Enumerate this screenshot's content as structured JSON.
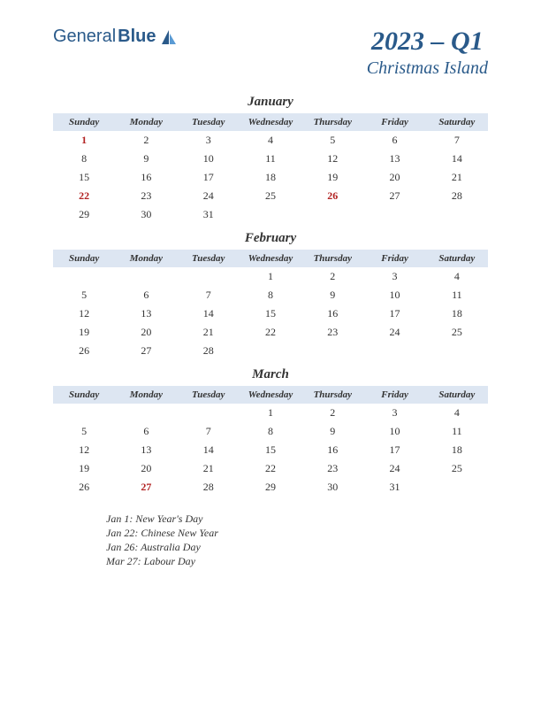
{
  "logo": {
    "general": "General",
    "blue": "Blue"
  },
  "title": {
    "quarter": "2023 – Q1",
    "region": "Christmas Island"
  },
  "dayHeaders": [
    "Sunday",
    "Monday",
    "Tuesday",
    "Wednesday",
    "Thursday",
    "Friday",
    "Saturday"
  ],
  "months": [
    {
      "name": "January",
      "weeks": [
        [
          {
            "d": "1",
            "h": true
          },
          {
            "d": "2"
          },
          {
            "d": "3"
          },
          {
            "d": "4"
          },
          {
            "d": "5"
          },
          {
            "d": "6"
          },
          {
            "d": "7"
          }
        ],
        [
          {
            "d": "8"
          },
          {
            "d": "9"
          },
          {
            "d": "10"
          },
          {
            "d": "11"
          },
          {
            "d": "12"
          },
          {
            "d": "13"
          },
          {
            "d": "14"
          }
        ],
        [
          {
            "d": "15"
          },
          {
            "d": "16"
          },
          {
            "d": "17"
          },
          {
            "d": "18"
          },
          {
            "d": "19"
          },
          {
            "d": "20"
          },
          {
            "d": "21"
          }
        ],
        [
          {
            "d": "22",
            "h": true
          },
          {
            "d": "23"
          },
          {
            "d": "24"
          },
          {
            "d": "25"
          },
          {
            "d": "26",
            "h": true
          },
          {
            "d": "27"
          },
          {
            "d": "28"
          }
        ],
        [
          {
            "d": "29"
          },
          {
            "d": "30"
          },
          {
            "d": "31"
          },
          {
            "d": ""
          },
          {
            "d": ""
          },
          {
            "d": ""
          },
          {
            "d": ""
          }
        ]
      ]
    },
    {
      "name": "February",
      "weeks": [
        [
          {
            "d": ""
          },
          {
            "d": ""
          },
          {
            "d": ""
          },
          {
            "d": "1"
          },
          {
            "d": "2"
          },
          {
            "d": "3"
          },
          {
            "d": "4"
          }
        ],
        [
          {
            "d": "5"
          },
          {
            "d": "6"
          },
          {
            "d": "7"
          },
          {
            "d": "8"
          },
          {
            "d": "9"
          },
          {
            "d": "10"
          },
          {
            "d": "11"
          }
        ],
        [
          {
            "d": "12"
          },
          {
            "d": "13"
          },
          {
            "d": "14"
          },
          {
            "d": "15"
          },
          {
            "d": "16"
          },
          {
            "d": "17"
          },
          {
            "d": "18"
          }
        ],
        [
          {
            "d": "19"
          },
          {
            "d": "20"
          },
          {
            "d": "21"
          },
          {
            "d": "22"
          },
          {
            "d": "23"
          },
          {
            "d": "24"
          },
          {
            "d": "25"
          }
        ],
        [
          {
            "d": "26"
          },
          {
            "d": "27"
          },
          {
            "d": "28"
          },
          {
            "d": ""
          },
          {
            "d": ""
          },
          {
            "d": ""
          },
          {
            "d": ""
          }
        ]
      ]
    },
    {
      "name": "March",
      "weeks": [
        [
          {
            "d": ""
          },
          {
            "d": ""
          },
          {
            "d": ""
          },
          {
            "d": "1"
          },
          {
            "d": "2"
          },
          {
            "d": "3"
          },
          {
            "d": "4"
          }
        ],
        [
          {
            "d": "5"
          },
          {
            "d": "6"
          },
          {
            "d": "7"
          },
          {
            "d": "8"
          },
          {
            "d": "9"
          },
          {
            "d": "10"
          },
          {
            "d": "11"
          }
        ],
        [
          {
            "d": "12"
          },
          {
            "d": "13"
          },
          {
            "d": "14"
          },
          {
            "d": "15"
          },
          {
            "d": "16"
          },
          {
            "d": "17"
          },
          {
            "d": "18"
          }
        ],
        [
          {
            "d": "19"
          },
          {
            "d": "20"
          },
          {
            "d": "21"
          },
          {
            "d": "22"
          },
          {
            "d": "23"
          },
          {
            "d": "24"
          },
          {
            "d": "25"
          }
        ],
        [
          {
            "d": "26"
          },
          {
            "d": "27",
            "h": true
          },
          {
            "d": "28"
          },
          {
            "d": "29"
          },
          {
            "d": "30"
          },
          {
            "d": "31"
          },
          {
            "d": ""
          }
        ]
      ]
    }
  ],
  "holidays": [
    "Jan 1: New Year's Day",
    "Jan 22: Chinese New Year",
    "Jan 26: Australia Day",
    "Mar 27: Labour Day"
  ],
  "colors": {
    "accent": "#2a5a8a",
    "headerBg": "#dde6f2",
    "holiday": "#b22222",
    "text": "#333333",
    "background": "#ffffff"
  }
}
